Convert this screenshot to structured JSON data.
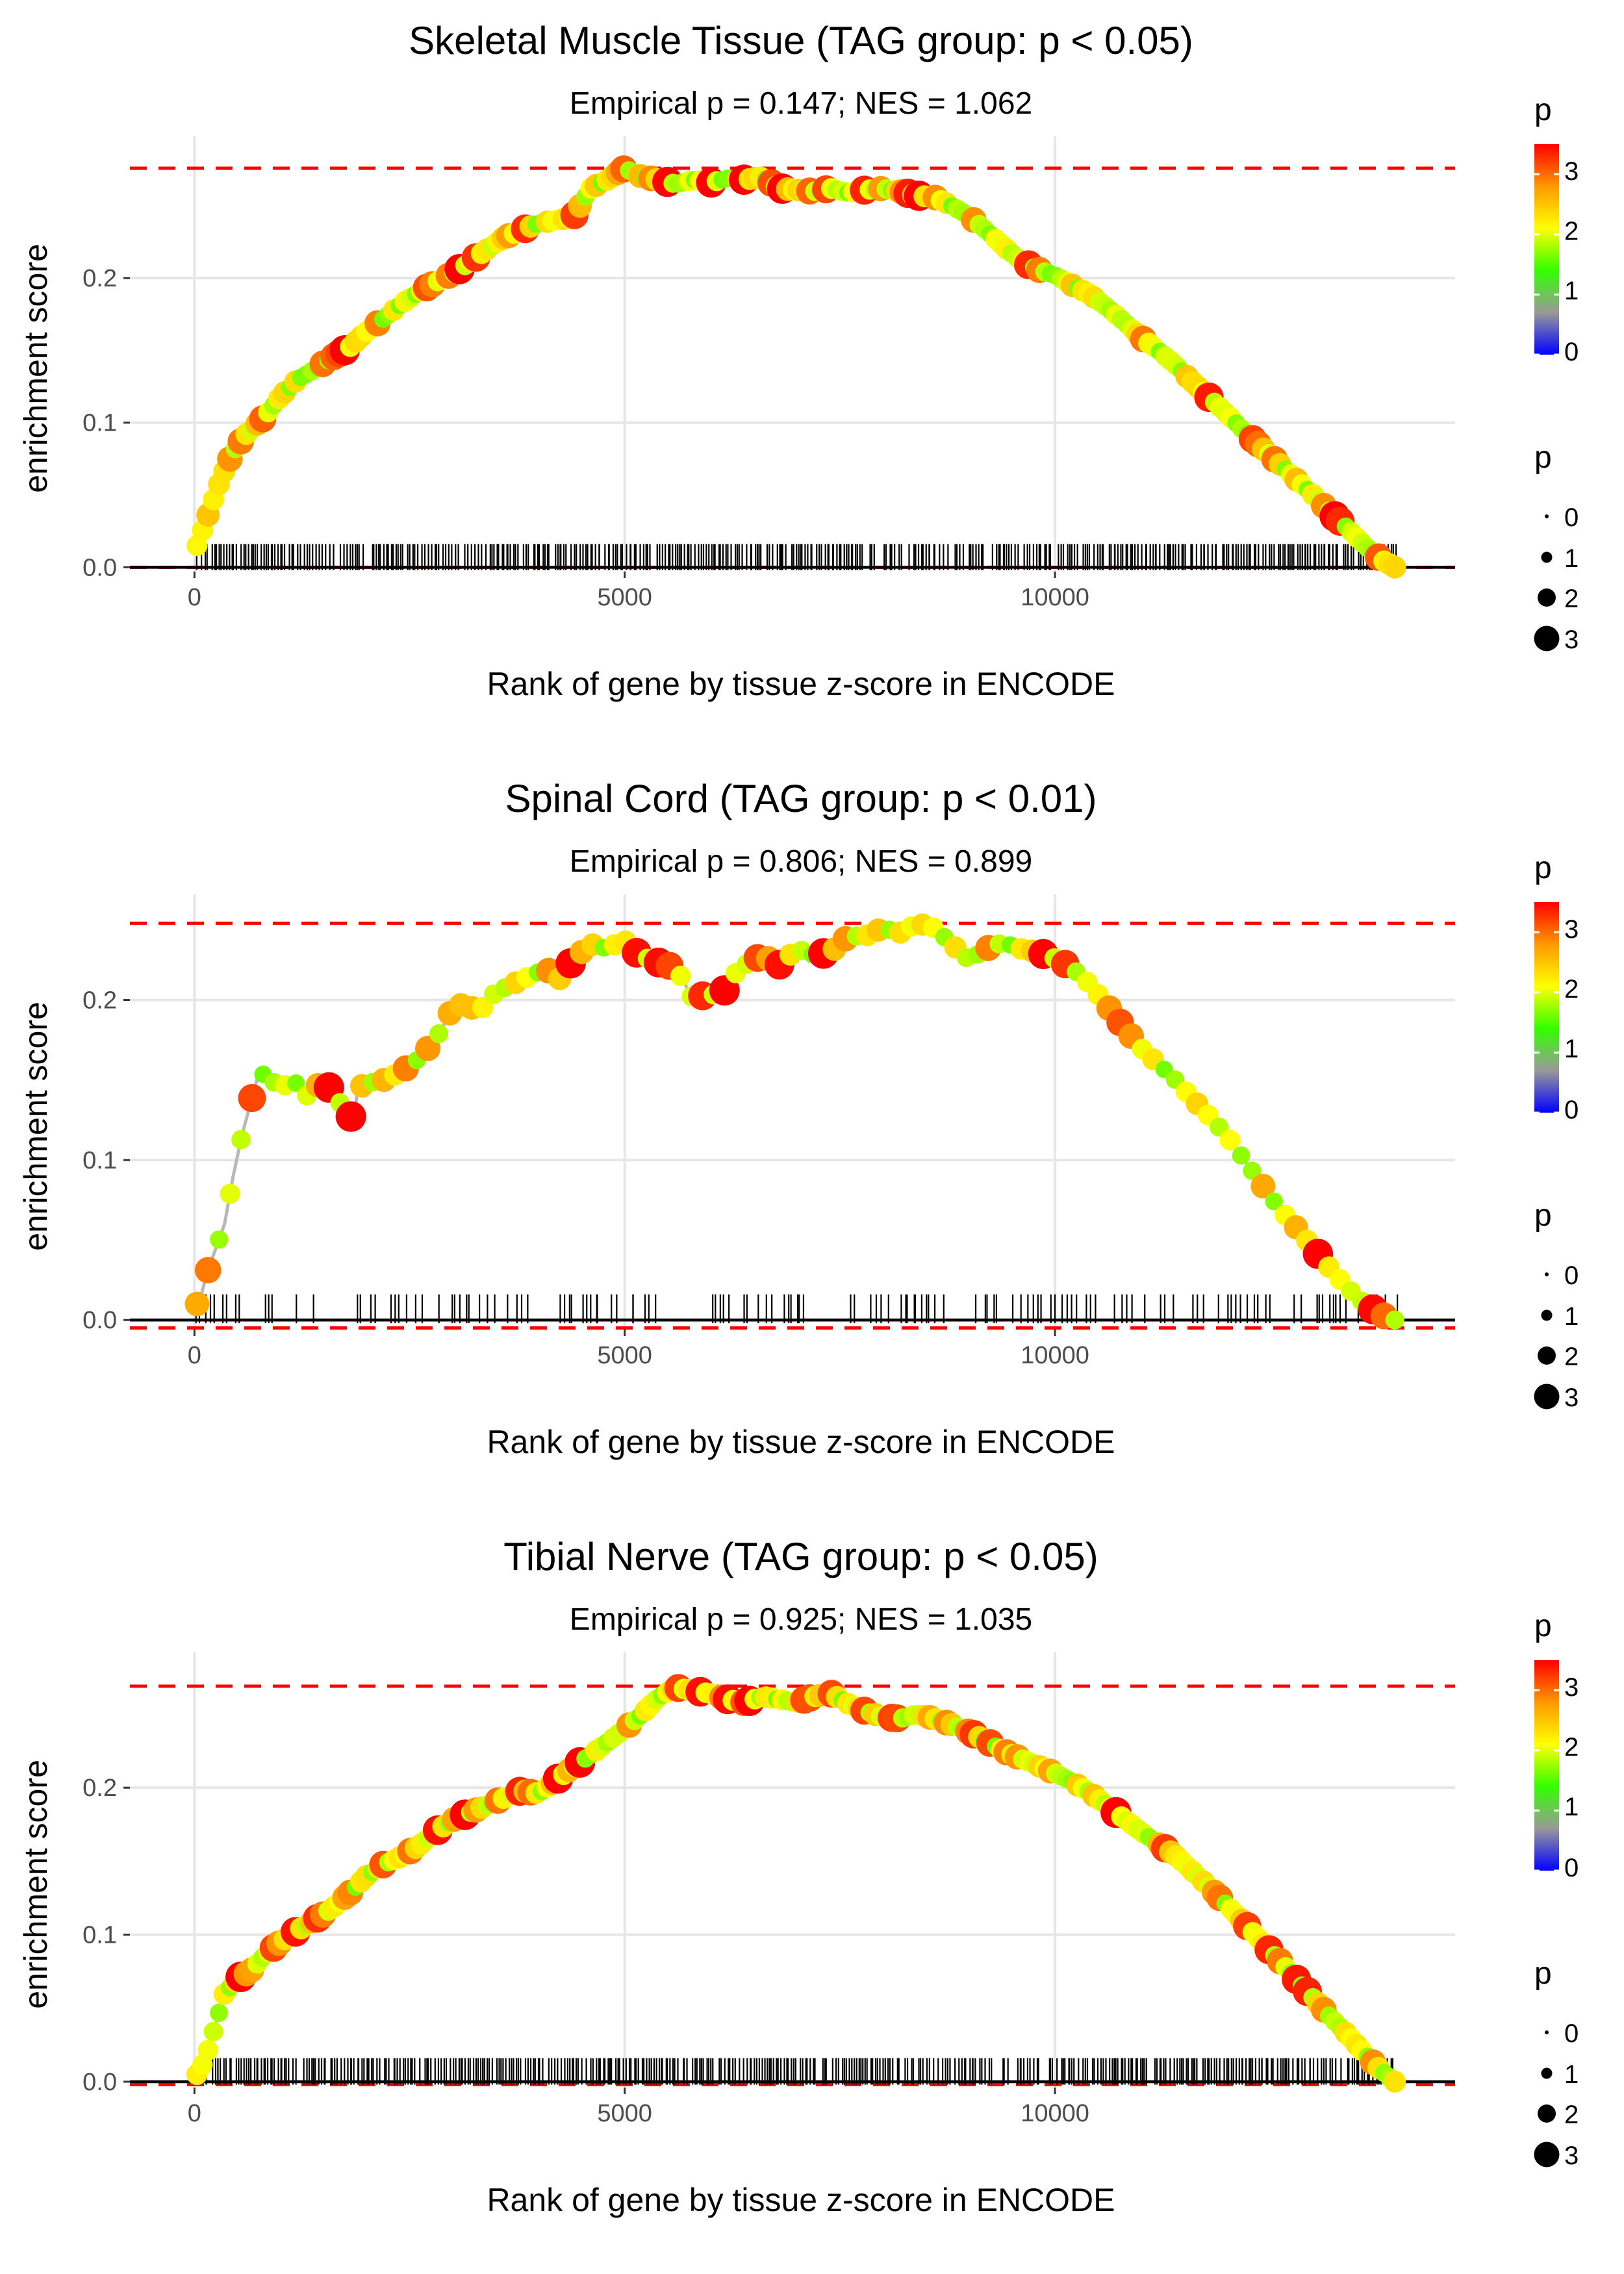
{
  "colors": {
    "reference_line": "#ff0000",
    "curve": "#b8b8b8",
    "zero_line": "#000000",
    "grid": "#e6e6e6",
    "gradient": [
      "#0000ff",
      "#999999",
      "#33ff00",
      "#ffff00",
      "#ff9900",
      "#ff0000"
    ]
  },
  "chart_data": [
    {
      "type": "line",
      "title": "Skeletal Muscle Tissue (TAG group: p < 0.05)",
      "subtitle": "Empirical p = 0.147; NES = 1.062",
      "xlabel": "Rank of gene by tissue z-score in ENCODE",
      "ylabel": "enrichment score",
      "xlim": [
        -750,
        14650
      ],
      "ylim": [
        -0.003,
        0.298
      ],
      "xticks": [
        0,
        5000,
        10000
      ],
      "xtick_labels": [
        "0",
        "5000",
        "10000"
      ],
      "yticks": [
        0.0,
        0.1,
        0.2
      ],
      "ytick_labels": [
        "0.0",
        "0.1",
        "0.2"
      ],
      "max_es": 0.276,
      "min_es": 0.0,
      "rug_density": "dense",
      "x": [
        30,
        150,
        300,
        450,
        600,
        800,
        1000,
        1200,
        1400,
        1600,
        1800,
        2000,
        2200,
        2400,
        2600,
        2800,
        3000,
        3200,
        3400,
        3600,
        3800,
        4000,
        4200,
        4400,
        4600,
        4700,
        4800,
        5000,
        5200,
        5400,
        5600,
        5800,
        6000,
        6200,
        6400,
        6600,
        6800,
        7000,
        7200,
        7400,
        7600,
        7800,
        8000,
        8200,
        8400,
        8600,
        8800,
        9000,
        9200,
        9400,
        9600,
        9800,
        10000,
        10200,
        10400,
        10600,
        10800,
        11000,
        11200,
        11400,
        11600,
        11800,
        12000,
        12200,
        12400,
        12600,
        12800,
        13000,
        13200,
        13400,
        13600,
        13800,
        13950
      ],
      "y": [
        0.015,
        0.035,
        0.06,
        0.08,
        0.092,
        0.103,
        0.118,
        0.13,
        0.137,
        0.145,
        0.152,
        0.163,
        0.172,
        0.182,
        0.19,
        0.197,
        0.203,
        0.211,
        0.22,
        0.228,
        0.233,
        0.238,
        0.24,
        0.242,
        0.262,
        0.265,
        0.268,
        0.276,
        0.27,
        0.268,
        0.265,
        0.268,
        0.266,
        0.269,
        0.268,
        0.27,
        0.262,
        0.261,
        0.26,
        0.262,
        0.259,
        0.261,
        0.262,
        0.26,
        0.257,
        0.256,
        0.25,
        0.243,
        0.233,
        0.222,
        0.212,
        0.206,
        0.202,
        0.195,
        0.189,
        0.18,
        0.17,
        0.159,
        0.15,
        0.14,
        0.128,
        0.117,
        0.106,
        0.094,
        0.083,
        0.072,
        0.061,
        0.05,
        0.038,
        0.027,
        0.015,
        0.005,
        0.0
      ]
    },
    {
      "type": "line",
      "title": "Spinal Cord (TAG group: p < 0.01)",
      "subtitle": "Empirical p = 0.806; NES = 0.899",
      "xlabel": "Rank of gene by tissue z-score in ENCODE",
      "ylabel": "enrichment score",
      "xlim": [
        -750,
        14650
      ],
      "ylim": [
        -0.006,
        0.266
      ],
      "xticks": [
        0,
        5000,
        10000
      ],
      "xtick_labels": [
        "0",
        "5000",
        "10000"
      ],
      "yticks": [
        0.0,
        0.1,
        0.2
      ],
      "ytick_labels": [
        "0.0",
        "0.1",
        "0.2"
      ],
      "max_es": 0.248,
      "min_es": -0.005,
      "rug_density": "sparse",
      "x": [
        50,
        150,
        250,
        350,
        450,
        550,
        650,
        750,
        850,
        1000,
        1150,
        1300,
        1500,
        1700,
        1850,
        1900,
        2000,
        2200,
        2400,
        2600,
        2800,
        3000,
        3150,
        3300,
        3500,
        3700,
        3900,
        4100,
        4200,
        4400,
        4600,
        4800,
        5000,
        5050,
        5300,
        5600,
        5800,
        6000,
        6100,
        6250,
        6400,
        6600,
        6800,
        7000,
        7200,
        7400,
        7600,
        7800,
        8000,
        8200,
        8400,
        8600,
        8800,
        9000,
        9200,
        9400,
        9600,
        9800,
        10000,
        10200,
        10400,
        10600,
        10800,
        11000,
        11200,
        11400,
        11600,
        11800,
        12000,
        12200,
        12400,
        12600,
        12800,
        13000,
        13200,
        13400,
        13600,
        13800,
        13950
      ],
      "y": [
        0.01,
        0.03,
        0.045,
        0.06,
        0.09,
        0.115,
        0.135,
        0.155,
        0.152,
        0.145,
        0.15,
        0.14,
        0.15,
        0.135,
        0.125,
        0.145,
        0.148,
        0.15,
        0.155,
        0.163,
        0.175,
        0.195,
        0.198,
        0.192,
        0.205,
        0.21,
        0.215,
        0.22,
        0.21,
        0.225,
        0.235,
        0.232,
        0.238,
        0.232,
        0.225,
        0.22,
        0.2,
        0.205,
        0.2,
        0.215,
        0.222,
        0.228,
        0.222,
        0.232,
        0.228,
        0.23,
        0.24,
        0.24,
        0.245,
        0.242,
        0.248,
        0.245,
        0.235,
        0.225,
        0.232,
        0.236,
        0.232,
        0.23,
        0.226,
        0.22,
        0.21,
        0.197,
        0.183,
        0.17,
        0.16,
        0.15,
        0.138,
        0.127,
        0.115,
        0.1,
        0.085,
        0.07,
        0.058,
        0.045,
        0.032,
        0.02,
        0.01,
        0.003,
        0.0
      ]
    },
    {
      "type": "line",
      "title": "Tibial Nerve (TAG group: p < 0.05)",
      "subtitle": "Empirical p = 0.925; NES = 1.035",
      "xlabel": "Rank of gene by tissue z-score in ENCODE",
      "ylabel": "enrichment score",
      "xlim": [
        -750,
        14650
      ],
      "ylim": [
        -0.004,
        0.292
      ],
      "xticks": [
        0,
        5000,
        10000
      ],
      "xtick_labels": [
        "0",
        "5000",
        "10000"
      ],
      "yticks": [
        0.0,
        0.1,
        0.2
      ],
      "ytick_labels": [
        "0.0",
        "0.1",
        "0.2"
      ],
      "max_es": 0.269,
      "min_es": -0.002,
      "rug_density": "dense",
      "x": [
        50,
        150,
        250,
        350,
        500,
        650,
        800,
        1000,
        1200,
        1400,
        1600,
        1800,
        2000,
        2200,
        2400,
        2600,
        2800,
        3000,
        3200,
        3400,
        3600,
        3800,
        4000,
        4200,
        4400,
        4600,
        4800,
        5000,
        5200,
        5400,
        5600,
        5800,
        6000,
        6200,
        6400,
        6600,
        6800,
        7000,
        7200,
        7400,
        7600,
        7800,
        8000,
        8200,
        8400,
        8600,
        8800,
        9000,
        9200,
        9400,
        9600,
        9800,
        10000,
        10200,
        10400,
        10600,
        10800,
        11000,
        11200,
        11400,
        11600,
        11800,
        12000,
        12200,
        12400,
        12600,
        12800,
        13000,
        13200,
        13400,
        13600,
        13800,
        13950
      ],
      "y": [
        0.005,
        0.02,
        0.04,
        0.06,
        0.07,
        0.075,
        0.085,
        0.095,
        0.103,
        0.11,
        0.118,
        0.128,
        0.14,
        0.148,
        0.153,
        0.16,
        0.17,
        0.178,
        0.183,
        0.188,
        0.193,
        0.198,
        0.196,
        0.205,
        0.214,
        0.222,
        0.231,
        0.24,
        0.25,
        0.262,
        0.268,
        0.266,
        0.264,
        0.26,
        0.258,
        0.262,
        0.26,
        0.258,
        0.262,
        0.264,
        0.257,
        0.252,
        0.248,
        0.247,
        0.25,
        0.247,
        0.243,
        0.238,
        0.232,
        0.225,
        0.22,
        0.215,
        0.21,
        0.204,
        0.197,
        0.188,
        0.179,
        0.17,
        0.162,
        0.154,
        0.143,
        0.132,
        0.12,
        0.108,
        0.095,
        0.083,
        0.07,
        0.057,
        0.044,
        0.032,
        0.019,
        0.007,
        0.0
      ]
    }
  ],
  "legend": {
    "color_title": "p",
    "color_ticks": [
      "3",
      "2",
      "1",
      "0"
    ],
    "size_title": "p",
    "size_labels": [
      "0",
      "1",
      "2",
      "3"
    ]
  }
}
